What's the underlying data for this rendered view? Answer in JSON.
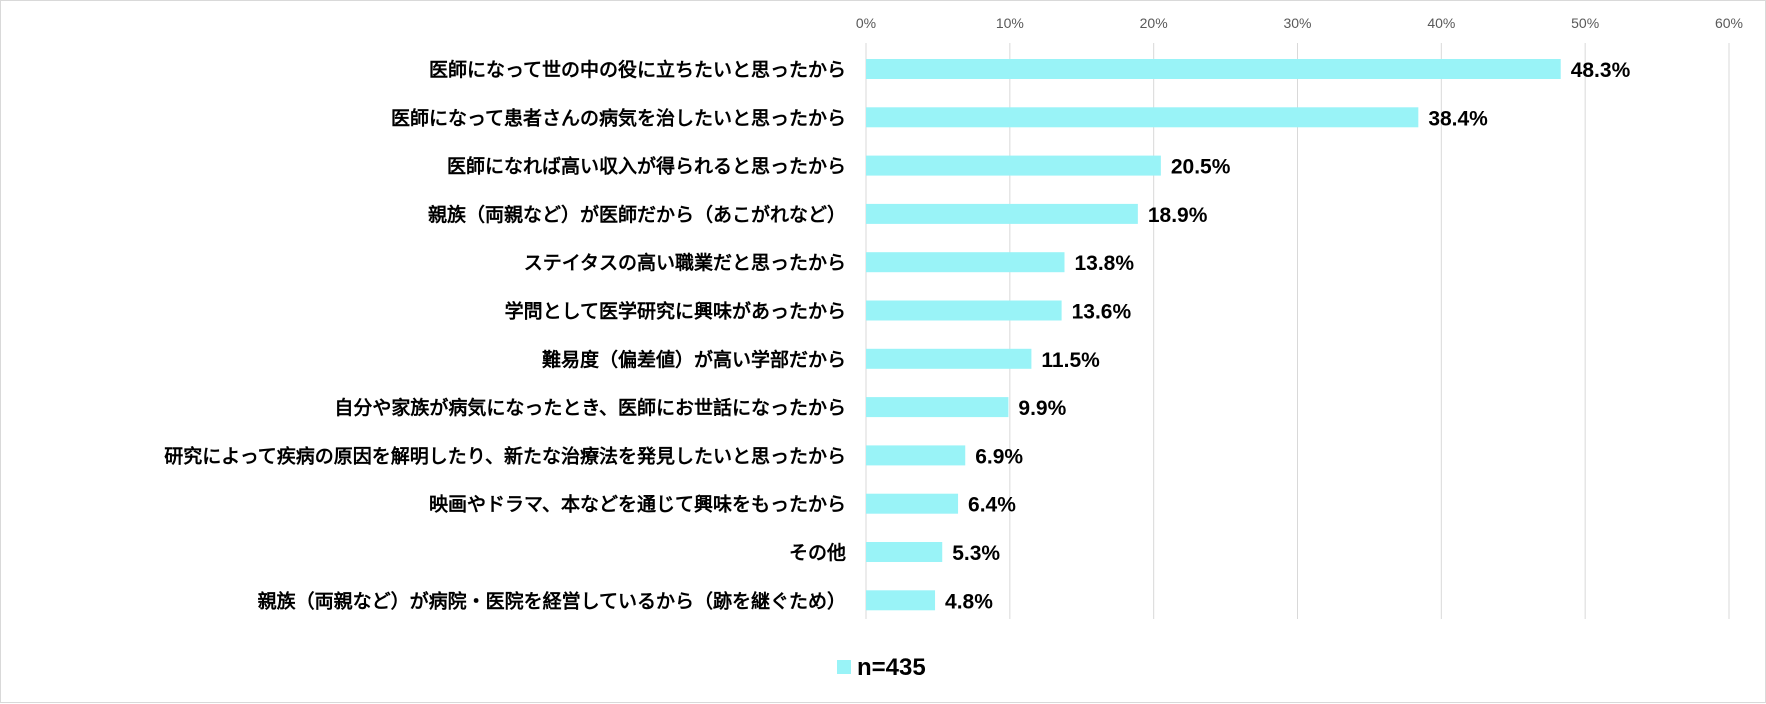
{
  "chart_data": {
    "type": "bar",
    "orientation": "horizontal",
    "categories": [
      "医師になって世の中の役に立ちたいと思ったから",
      "医師になって患者さんの病気を治したいと思ったから",
      "医師になれば高い収入が得られると思ったから",
      "親族（両親など）が医師だから（あこがれなど）",
      "ステイタスの高い職業だと思ったから",
      "学問として医学研究に興味があったから",
      "難易度（偏差値）が高い学部だから",
      "自分や家族が病気になったとき、医師にお世話になったから",
      "研究によって疾病の原因を解明したり、新たな治療法を発見したいと思ったから",
      "映画やドラマ、本などを通じて興味をもったから",
      "その他",
      "親族（両親など）が病院・医院を経営しているから（跡を継ぐため）"
    ],
    "series": [
      {
        "name": "n=435",
        "values": [
          48.3,
          38.4,
          20.5,
          18.9,
          13.8,
          13.6,
          11.5,
          9.9,
          6.9,
          6.4,
          5.3,
          4.8
        ],
        "value_labels": [
          "48.3%",
          "38.4%",
          "20.5%",
          "18.9%",
          "13.8%",
          "13.6%",
          "11.5%",
          "9.9%",
          "6.9%",
          "6.4%",
          "5.3%",
          "4.8%"
        ]
      }
    ],
    "xlim": [
      0,
      60
    ],
    "xticks": [
      0,
      10,
      20,
      30,
      40,
      50,
      60
    ],
    "xtick_labels": [
      "0%",
      "10%",
      "20%",
      "30%",
      "40%",
      "50%",
      "60%"
    ],
    "axis_position": "top",
    "grid": true,
    "legend": "bottom-center",
    "colors": {
      "bar": "#99f3f7",
      "grid": "#d9d9d9",
      "text": "#000000",
      "tick": "#595959"
    }
  }
}
